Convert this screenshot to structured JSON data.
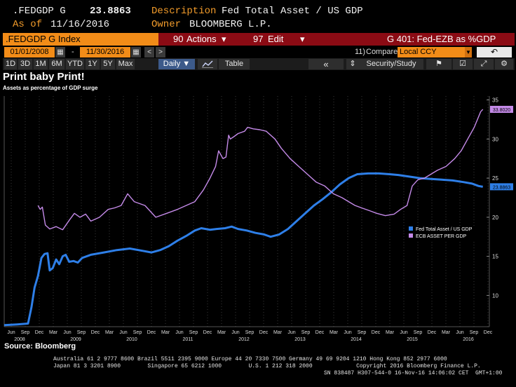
{
  "header": {
    "ticker": ".FEDGDP G",
    "last_value": "23.8863",
    "description_label": "Description",
    "description": "Fed Total Asset / US GDP",
    "asof_label": "As of",
    "asof": "11/16/2016",
    "owner_label": "Owner",
    "owner": "BLOOMBERG L.P."
  },
  "titlebar": {
    "index": ".FEDGDP G Index",
    "actions_num": "90",
    "actions": "Actions",
    "edit_num": "97",
    "edit": "Edit",
    "graph": "G 401: Fed-EZB as %GDP",
    "dropdown_arrow": "▾"
  },
  "datebar": {
    "start_date": "01/01/2008",
    "end_date": "11/30/2016",
    "dash": "-",
    "prev": "<",
    "next": ">",
    "compare_num": "11)",
    "compare": "Compare",
    "currency": "Local CCY",
    "back": "↶"
  },
  "periodbar": {
    "periods": [
      "1D",
      "3D",
      "1M",
      "6M",
      "YTD",
      "1Y",
      "5Y",
      "Max"
    ],
    "daily": "Daily ▼",
    "table": "Table",
    "collapse": "«",
    "security_study": "Security/Study",
    "flag": "⚑",
    "check": "☑",
    "gear": "⚙"
  },
  "colors": {
    "fed_series": "#2e7fe8",
    "ecb_series": "#c48ae8",
    "accent_orange": "#f28c18",
    "header_red": "#8b0b14"
  },
  "chart_data": {
    "type": "line",
    "title": "Print baby Print!",
    "subtitle": "Assets as percentage of GDP surge",
    "ylim": [
      6,
      35.5
    ],
    "y_ticks": [
      10,
      15,
      20,
      25,
      30,
      35
    ],
    "x_month_labels": [
      "Jun",
      "Sep",
      "Dec",
      "Mar",
      "Jun",
      "Sep",
      "Dec",
      "Mar",
      "Jun",
      "Sep",
      "Dec",
      "Mar",
      "Jun",
      "Sep",
      "Dec",
      "Mar",
      "Jun",
      "Sep",
      "Dec",
      "Mar",
      "Jun",
      "Sep",
      "Dec",
      "Mar",
      "Jun",
      "Sep",
      "Dec",
      "Mar",
      "Jun",
      "Sep",
      "Dec",
      "Mar",
      "Jun",
      "Sep",
      "Dec"
    ],
    "x_year_labels": [
      "2008",
      "2009",
      "2010",
      "2011",
      "2012",
      "2013",
      "2014",
      "2015",
      "2016"
    ],
    "legend_position": "right",
    "grid": "vertical-dotted",
    "series": [
      {
        "name": "Fed Total Asset / US GDP",
        "last_label": "23.8863",
        "color": "#2e7fe8",
        "points": [
          [
            2008.0,
            6.2
          ],
          [
            2008.3,
            6.3
          ],
          [
            2008.55,
            6.4
          ],
          [
            2008.63,
            8.5
          ],
          [
            2008.7,
            11.0
          ],
          [
            2008.78,
            12.5
          ],
          [
            2008.86,
            14.8
          ],
          [
            2008.93,
            15.3
          ],
          [
            2009.0,
            15.4
          ],
          [
            2009.05,
            13.2
          ],
          [
            2009.12,
            13.5
          ],
          [
            2009.2,
            14.6
          ],
          [
            2009.27,
            14.0
          ],
          [
            2009.35,
            15.0
          ],
          [
            2009.42,
            15.2
          ],
          [
            2009.5,
            14.3
          ],
          [
            2009.6,
            14.4
          ],
          [
            2009.7,
            14.2
          ],
          [
            2009.8,
            14.8
          ],
          [
            2010.0,
            15.2
          ],
          [
            2010.3,
            15.5
          ],
          [
            2010.6,
            15.8
          ],
          [
            2010.9,
            16.0
          ],
          [
            2011.2,
            15.7
          ],
          [
            2011.4,
            15.5
          ],
          [
            2011.6,
            15.8
          ],
          [
            2011.8,
            16.3
          ],
          [
            2012.0,
            17.0
          ],
          [
            2012.2,
            17.6
          ],
          [
            2012.4,
            18.3
          ],
          [
            2012.55,
            18.6
          ],
          [
            2012.75,
            18.4
          ],
          [
            2012.9,
            18.5
          ],
          [
            2013.1,
            18.6
          ],
          [
            2013.25,
            18.8
          ],
          [
            2013.4,
            18.5
          ],
          [
            2013.6,
            18.3
          ],
          [
            2013.8,
            18.0
          ],
          [
            2014.0,
            17.8
          ],
          [
            2014.15,
            17.5
          ],
          [
            2014.35,
            17.8
          ],
          [
            2014.55,
            18.5
          ],
          [
            2014.75,
            19.5
          ],
          [
            2014.95,
            20.5
          ],
          [
            2015.15,
            21.5
          ],
          [
            2015.35,
            22.3
          ],
          [
            2015.55,
            23.2
          ],
          [
            2015.75,
            24.2
          ],
          [
            2015.95,
            25.0
          ],
          [
            2016.15,
            25.5
          ],
          [
            2016.4,
            25.6
          ],
          [
            2016.65,
            25.6
          ],
          [
            2016.9,
            25.5
          ],
          [
            2017.1,
            25.4
          ],
          [
            2017.35,
            25.2
          ],
          [
            2017.6,
            25.0
          ],
          [
            2017.85,
            24.9
          ],
          [
            2018.1,
            24.8
          ],
          [
            2018.35,
            24.7
          ],
          [
            2018.6,
            24.5
          ],
          [
            2018.8,
            24.3
          ],
          [
            2018.95,
            24.0
          ],
          [
            2019.05,
            23.9
          ]
        ]
      },
      {
        "name": "ECB ASSET PER GDP",
        "last_label": "33.8020",
        "color": "#c48ae8",
        "points": [
          [
            2008.78,
            21.5
          ],
          [
            2008.83,
            21.0
          ],
          [
            2008.88,
            21.3
          ],
          [
            2008.95,
            19.0
          ],
          [
            2009.05,
            18.5
          ],
          [
            2009.2,
            18.8
          ],
          [
            2009.35,
            18.4
          ],
          [
            2009.5,
            19.6
          ],
          [
            2009.62,
            20.5
          ],
          [
            2009.75,
            20.0
          ],
          [
            2009.88,
            20.4
          ],
          [
            2010.0,
            19.5
          ],
          [
            2010.2,
            20.0
          ],
          [
            2010.4,
            21.0
          ],
          [
            2010.55,
            21.2
          ],
          [
            2010.7,
            21.5
          ],
          [
            2010.85,
            23.0
          ],
          [
            2011.0,
            22.0
          ],
          [
            2011.25,
            21.5
          ],
          [
            2011.5,
            20.0
          ],
          [
            2011.75,
            20.5
          ],
          [
            2012.0,
            21.0
          ],
          [
            2012.2,
            21.5
          ],
          [
            2012.4,
            22.0
          ],
          [
            2012.6,
            23.5
          ],
          [
            2012.75,
            25.0
          ],
          [
            2012.88,
            26.5
          ],
          [
            2012.95,
            28.5
          ],
          [
            2013.0,
            28.0
          ],
          [
            2013.05,
            27.5
          ],
          [
            2013.12,
            27.7
          ],
          [
            2013.18,
            30.5
          ],
          [
            2013.22,
            30.0
          ],
          [
            2013.3,
            30.3
          ],
          [
            2013.4,
            30.7
          ],
          [
            2013.55,
            31.0
          ],
          [
            2013.62,
            31.5
          ],
          [
            2013.75,
            31.3
          ],
          [
            2013.9,
            31.2
          ],
          [
            2014.05,
            31.0
          ],
          [
            2014.25,
            30.0
          ],
          [
            2014.4,
            28.8
          ],
          [
            2014.6,
            27.5
          ],
          [
            2014.8,
            26.5
          ],
          [
            2015.0,
            25.5
          ],
          [
            2015.2,
            24.5
          ],
          [
            2015.4,
            24.0
          ],
          [
            2015.6,
            23.0
          ],
          [
            2015.8,
            22.5
          ],
          [
            2015.95,
            22.0
          ],
          [
            2016.1,
            21.5
          ],
          [
            2016.25,
            21.2
          ],
          [
            2016.45,
            20.8
          ],
          [
            2016.6,
            20.5
          ],
          [
            2016.8,
            20.2
          ],
          [
            2017.0,
            20.4
          ],
          [
            2017.15,
            21.0
          ],
          [
            2017.3,
            21.5
          ],
          [
            2017.42,
            24.0
          ],
          [
            2017.55,
            24.8
          ],
          [
            2017.7,
            25.0
          ],
          [
            2017.85,
            25.5
          ],
          [
            2018.0,
            26.0
          ],
          [
            2018.2,
            26.5
          ],
          [
            2018.4,
            27.5
          ],
          [
            2018.55,
            28.5
          ],
          [
            2018.7,
            30.0
          ],
          [
            2018.85,
            31.5
          ],
          [
            2019.0,
            33.5
          ],
          [
            2019.05,
            33.8
          ]
        ]
      }
    ]
  },
  "source": "Source: Bloomberg",
  "footer": {
    "line1": "Australia 61 2 9777 8600 Brazil 5511 2395 9000 Europe 44 20 7330 7500 Germany 49 69 9204 1210 Hong Kong 852 2977 6000",
    "line2": "Japan 81 3 3201 8900        Singapore 65 6212 1000        U.S. 1 212 318 2000             Copyright 2016 Bloomberg Finance L.P.",
    "line3": "SN 838487 H307-544-0 16-Nov-16 14:06:02 CET  GMT+1:00"
  }
}
